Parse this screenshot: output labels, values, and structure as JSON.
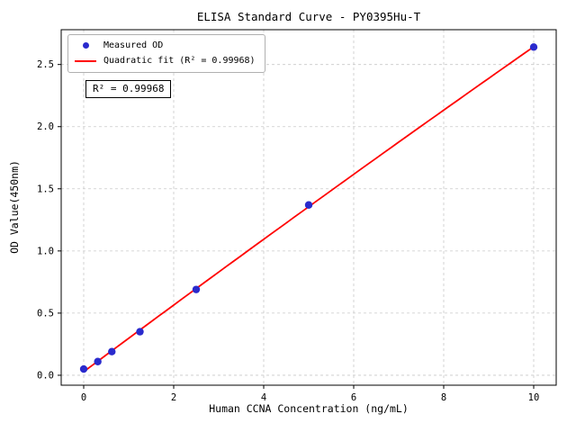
{
  "chart_data": {
    "type": "scatter",
    "title": "ELISA Standard Curve - PY0395Hu-T",
    "xlabel": "Human CCNA Concentration (ng/mL)",
    "ylabel": "OD Value(450nm)",
    "xlim": [
      -0.5,
      10.5
    ],
    "ylim": [
      -0.08,
      2.78
    ],
    "xticks": [
      0,
      2,
      4,
      6,
      8,
      10
    ],
    "yticks": [
      0.0,
      0.5,
      1.0,
      1.5,
      2.0,
      2.5
    ],
    "grid": true,
    "grid_style": "dashed",
    "legend_position": "upper-left",
    "series": [
      {
        "name": "Measured OD",
        "type": "scatter",
        "color": "#2a2acd",
        "x": [
          0,
          0.313,
          0.625,
          1.25,
          2.5,
          5,
          10
        ],
        "y": [
          0.05,
          0.11,
          0.19,
          0.35,
          0.69,
          1.37,
          2.64
        ]
      },
      {
        "name": "Quadratic fit (R² = 0.99968)",
        "type": "quadratic-fit",
        "color": "#ff0000"
      }
    ],
    "annotation": "R² = 0.99968",
    "r_squared": 0.99968,
    "colors": {
      "grid": "#c9c9c9",
      "frame": "#000000",
      "point": "#2a2acd",
      "line": "#ff0000"
    }
  }
}
